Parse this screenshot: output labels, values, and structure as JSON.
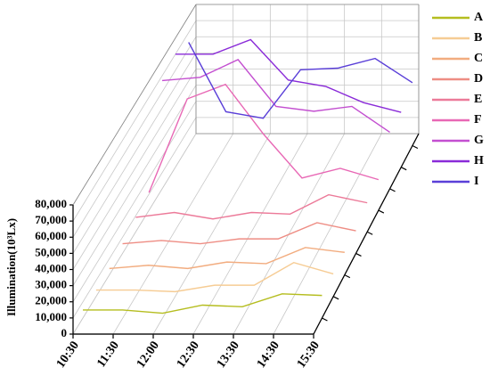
{
  "chart_data": {
    "type": "line3d",
    "y_label": "Illumination(10³Lx)",
    "categories": [
      "10:30",
      "11:30",
      "12:00",
      "12:30",
      "13:30",
      "14:30",
      "15:30"
    ],
    "ylim": [
      0,
      80000
    ],
    "yticks": [
      0,
      {
        "value": 10000,
        "label": "10,000"
      },
      {
        "value": 20000,
        "label": "20,000"
      },
      {
        "value": 30000,
        "label": "30,000"
      },
      {
        "value": 40000,
        "label": "40,000"
      },
      {
        "value": 50000,
        "label": "50,000"
      },
      {
        "value": 60000,
        "label": "60,000"
      },
      {
        "value": 70000,
        "label": "70,000"
      },
      {
        "value": 80000,
        "label": "80,000"
      }
    ],
    "grid": true,
    "legend": "right",
    "series": [
      {
        "name": "A",
        "color": "#b5bd1f",
        "values": [
          5000,
          5000,
          3000,
          8000,
          7000,
          15000,
          14000
        ]
      },
      {
        "name": "B",
        "color": "#f6cc94",
        "values": [
          4000,
          4000,
          3000,
          7000,
          7000,
          21000,
          14000
        ]
      },
      {
        "name": "C",
        "color": "#f2ac7f",
        "values": [
          4000,
          6000,
          4000,
          8000,
          7000,
          17000,
          14000
        ]
      },
      {
        "name": "D",
        "color": "#ee8d84",
        "values": [
          6000,
          8000,
          6000,
          9000,
          9000,
          19000,
          14000
        ]
      },
      {
        "name": "E",
        "color": "#ec7a99",
        "values": [
          9000,
          12000,
          8000,
          12000,
          11000,
          23000,
          18000
        ]
      },
      {
        "name": "F",
        "color": "#e868b5",
        "values": [
          11000,
          69000,
          78000,
          47000,
          20000,
          26000,
          19000
        ]
      },
      {
        "name": "G",
        "color": "#c34fd0",
        "values": [
          67000,
          69000,
          80000,
          51000,
          48000,
          51000,
          35000
        ]
      },
      {
        "name": "H",
        "color": "#8a2bd8",
        "values": [
          70000,
          70000,
          79000,
          54000,
          50000,
          40000,
          34000
        ]
      },
      {
        "name": "I",
        "color": "#5a3fd8",
        "values": [
          64000,
          21000,
          17000,
          47000,
          48000,
          54000,
          39000
        ]
      }
    ]
  }
}
